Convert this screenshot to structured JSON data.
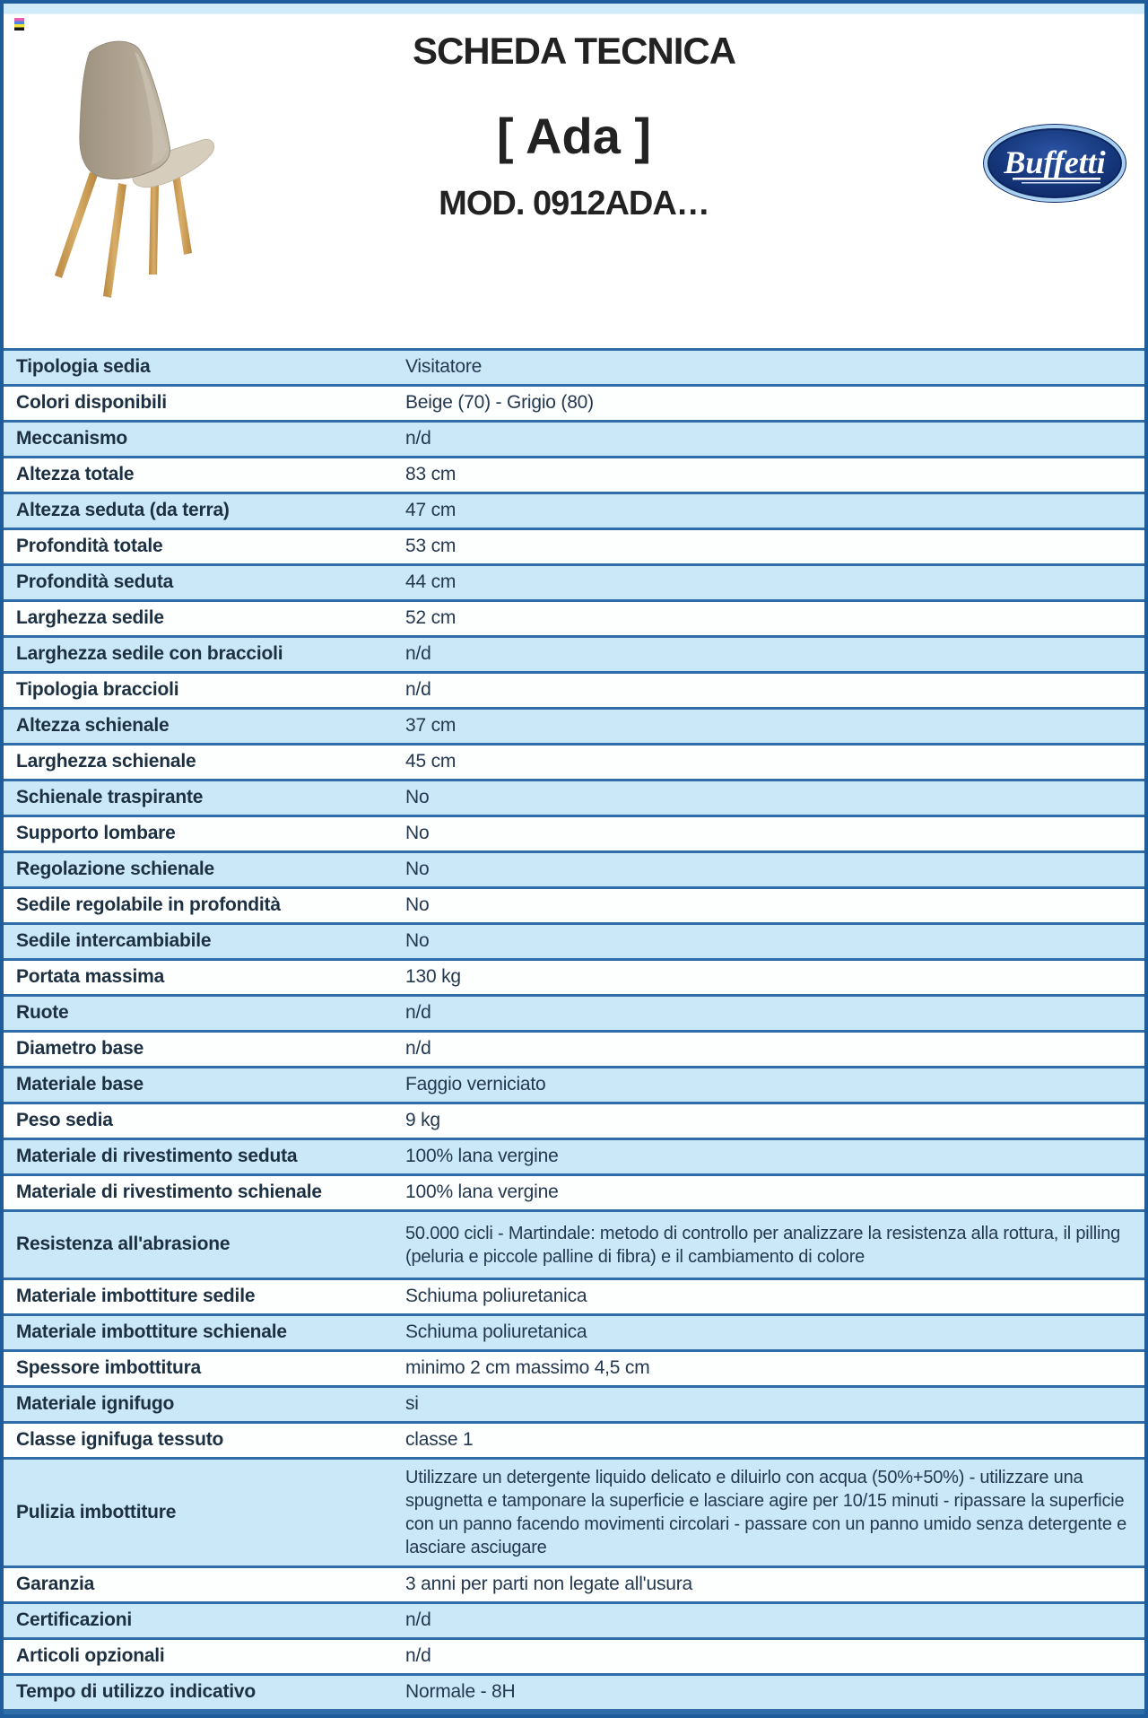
{
  "header": {
    "title": "SCHEDA TECNICA",
    "product_name": "[ Ada ]",
    "model": "MOD. 0912ADA…",
    "brand": "Buffetti"
  },
  "icons": {
    "print_marks": "cmyk-registration-icon",
    "brand_logo": "buffetti-logo",
    "product_photo": "chair-photo"
  },
  "colors": {
    "accent": "#2e6da8",
    "border": "#1e5c9c",
    "row_blue": "#cbe8f8",
    "row_white": "#fdfefe",
    "band": "#cfeaf9",
    "ink": "#202f40",
    "logo_navy": "#14336e"
  },
  "table": {
    "rows": [
      {
        "label": "Tipologia sedia",
        "value": "Visitatore"
      },
      {
        "label": "Colori disponibili",
        "value": "Beige (70) - Grigio (80)"
      },
      {
        "label": "Meccanismo",
        "value": "n/d"
      },
      {
        "label": "Altezza totale",
        "value": "83 cm"
      },
      {
        "label": "Altezza seduta (da terra)",
        "value": "47 cm"
      },
      {
        "label": "Profondità totale",
        "value": "53 cm"
      },
      {
        "label": "Profondità seduta",
        "value": "44 cm"
      },
      {
        "label": "Larghezza sedile",
        "value": "52 cm"
      },
      {
        "label": "Larghezza sedile con braccioli",
        "value": "n/d"
      },
      {
        "label": "Tipologia braccioli",
        "value": "n/d"
      },
      {
        "label": "Altezza schienale",
        "value": "37 cm"
      },
      {
        "label": "Larghezza schienale",
        "value": "45 cm"
      },
      {
        "label": "Schienale traspirante",
        "value": "No"
      },
      {
        "label": "Supporto lombare",
        "value": "No"
      },
      {
        "label": "Regolazione schienale",
        "value": "No"
      },
      {
        "label": "Sedile regolabile in profondità",
        "value": "No"
      },
      {
        "label": "Sedile intercambiabile",
        "value": "No"
      },
      {
        "label": "Portata massima",
        "value": "130 kg"
      },
      {
        "label": "Ruote",
        "value": "n/d"
      },
      {
        "label": "Diametro base",
        "value": "n/d"
      },
      {
        "label": "Materiale base",
        "value": "Faggio verniciato"
      },
      {
        "label": "Peso sedia",
        "value": "9 kg"
      },
      {
        "label": "Materiale di rivestimento seduta",
        "value": "100% lana vergine"
      },
      {
        "label": "Materiale di rivestimento schienale",
        "value": "100% lana vergine"
      },
      {
        "label": "Resistenza all'abrasione",
        "value": "50.000 cicli - Martindale: metodo di controllo per analizzare la resistenza alla rottura, il pilling (peluria e piccole palline di fibra) e il cambiamento di colore"
      },
      {
        "label": "Materiale imbottiture sedile",
        "value": "Schiuma poliuretanica"
      },
      {
        "label": "Materiale imbottiture schienale",
        "value": "Schiuma poliuretanica"
      },
      {
        "label": "Spessore imbottitura",
        "value": "minimo 2 cm massimo 4,5 cm"
      },
      {
        "label": "Materiale ignifugo",
        "value": "si"
      },
      {
        "label": "Classe ignifuga tessuto",
        "value": "classe 1"
      },
      {
        "label": "Pulizia imbottiture",
        "value": "Utilizzare un detergente liquido delicato e diluirlo con acqua (50%+50%) - utilizzare una spugnetta e tamponare la superficie e lasciare agire per 10/15 minuti - ripassare la superficie con un panno facendo movimenti circolari - passare con un panno umido senza detergente e lasciare asciugare"
      },
      {
        "label": "Garanzia",
        "value": "3 anni per parti non legate all'usura"
      },
      {
        "label": "Certificazioni",
        "value": "n/d"
      },
      {
        "label": "Articoli opzionali",
        "value": "n/d"
      },
      {
        "label": "Tempo di utilizzo indicativo",
        "value": "Normale - 8H"
      }
    ]
  }
}
